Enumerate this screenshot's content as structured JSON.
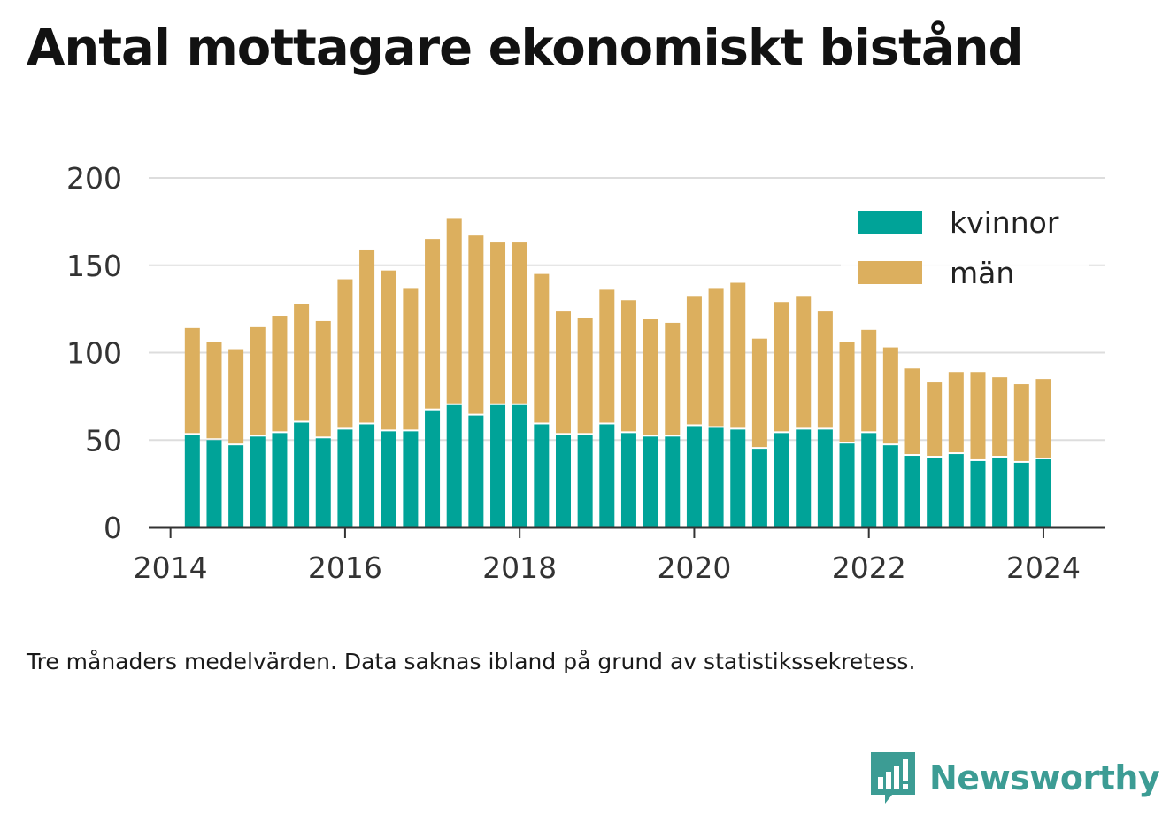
{
  "title": "Antal mottagare ekonomiskt bistånd",
  "footnote": "Tre månaders medelvärden. Data saknas ibland på grund av statistikssekretess.",
  "brand": "Newsworthy",
  "colors": {
    "kvinnor": "#00a398",
    "man": "#dcaf5e",
    "grid": "#dddddd",
    "axis": "#333333",
    "text": "#333333",
    "brand": "#3c9c94"
  },
  "chart_data": {
    "type": "bar",
    "stacked": true,
    "x_ticks": [
      "2014",
      "2016",
      "2018",
      "2020",
      "2022",
      "2024"
    ],
    "y_ticks": [
      "0",
      "50",
      "100",
      "150",
      "200"
    ],
    "ylim": [
      0,
      200
    ],
    "xlim": [
      2013.75,
      2024.7
    ],
    "grid": true,
    "legend_position": "top-right",
    "x": [
      2014.25,
      2014.5,
      2014.75,
      2015.0,
      2015.25,
      2015.5,
      2015.75,
      2016.0,
      2016.25,
      2016.5,
      2016.75,
      2017.0,
      2017.25,
      2017.5,
      2017.75,
      2018.0,
      2018.25,
      2018.5,
      2018.75,
      2019.0,
      2019.25,
      2019.5,
      2019.75,
      2020.0,
      2020.25,
      2020.5,
      2020.75,
      2021.0,
      2021.25,
      2021.5,
      2021.75,
      2022.0,
      2022.25,
      2022.5,
      2022.75,
      2023.0,
      2023.25,
      2023.5,
      2023.75,
      2024.0
    ],
    "series": [
      {
        "name": "kvinnor",
        "values": [
          53,
          50,
          47,
          52,
          54,
          60,
          51,
          56,
          59,
          55,
          55,
          67,
          70,
          64,
          70,
          70,
          59,
          53,
          53,
          59,
          54,
          52,
          52,
          58,
          57,
          56,
          45,
          54,
          56,
          56,
          48,
          54,
          47,
          41,
          40,
          42,
          38,
          40,
          37,
          39
        ]
      },
      {
        "name": "män",
        "values": [
          61,
          56,
          55,
          63,
          67,
          68,
          67,
          86,
          100,
          92,
          82,
          98,
          107,
          103,
          93,
          93,
          86,
          71,
          67,
          77,
          76,
          67,
          65,
          74,
          80,
          84,
          63,
          75,
          76,
          68,
          58,
          59,
          56,
          50,
          43,
          47,
          51,
          46,
          45,
          46
        ]
      }
    ]
  }
}
